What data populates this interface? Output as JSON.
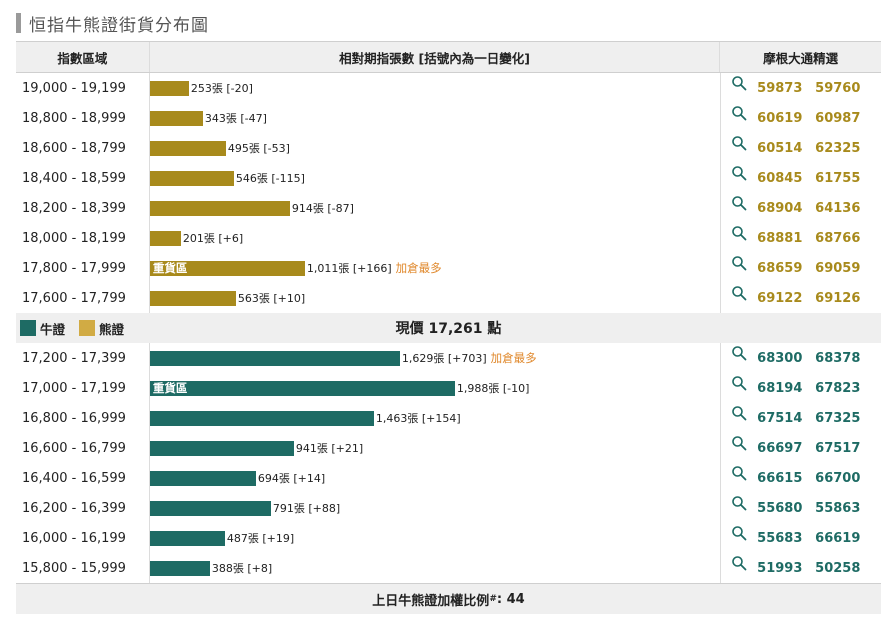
{
  "title": "恒指牛熊證街貨分布圖",
  "header": {
    "col_range": "指數區域",
    "col_count": "相對期指張數 [括號內為一日變化]",
    "col_picks": "摩根大通精選"
  },
  "legend": {
    "bull": "牛證",
    "bear": "熊證"
  },
  "price_label": "現價",
  "price_value": "17,261",
  "price_unit": "點",
  "footer": {
    "text": "上日牛熊證加權比例",
    "sup": "#",
    "value": ": 44"
  },
  "colors": {
    "bear": "#a88a1c",
    "bull": "#1e6b64",
    "note": "#e0892d"
  },
  "chart_data": {
    "type": "bar",
    "orientation": "horizontal",
    "value_unit": "張",
    "series": [
      {
        "name": "熊證",
        "rows": [
          {
            "range": "19,000 - 19,199",
            "value": 253,
            "value_text": "253張",
            "change_text": "[-20]",
            "inner_label": "",
            "note": "",
            "picks": [
              "59873",
              "59760"
            ]
          },
          {
            "range": "18,800 - 18,999",
            "value": 343,
            "value_text": "343張",
            "change_text": "[-47]",
            "inner_label": "",
            "note": "",
            "picks": [
              "60619",
              "60987"
            ]
          },
          {
            "range": "18,600 - 18,799",
            "value": 495,
            "value_text": "495張",
            "change_text": "[-53]",
            "inner_label": "",
            "note": "",
            "picks": [
              "60514",
              "62325"
            ]
          },
          {
            "range": "18,400 - 18,599",
            "value": 546,
            "value_text": "546張",
            "change_text": "[-115]",
            "inner_label": "",
            "note": "",
            "picks": [
              "60845",
              "61755"
            ]
          },
          {
            "range": "18,200 - 18,399",
            "value": 914,
            "value_text": "914張",
            "change_text": "[-87]",
            "inner_label": "",
            "note": "",
            "picks": [
              "68904",
              "64136"
            ]
          },
          {
            "range": "18,000 - 18,199",
            "value": 201,
            "value_text": "201張",
            "change_text": "[+6]",
            "inner_label": "",
            "note": "",
            "picks": [
              "68881",
              "68766"
            ]
          },
          {
            "range": "17,800 - 17,999",
            "value": 1011,
            "value_text": "1,011張",
            "change_text": "[+166]",
            "inner_label": "重貨區",
            "note": "加倉最多",
            "picks": [
              "68659",
              "69059"
            ]
          },
          {
            "range": "17,600 - 17,799",
            "value": 563,
            "value_text": "563張",
            "change_text": "[+10]",
            "inner_label": "",
            "note": "",
            "picks": [
              "69122",
              "69126"
            ]
          }
        ]
      },
      {
        "name": "牛證",
        "rows": [
          {
            "range": "17,200 - 17,399",
            "value": 1629,
            "value_text": "1,629張",
            "change_text": "[+703]",
            "inner_label": "",
            "note": "加倉最多",
            "picks": [
              "68300",
              "68378"
            ]
          },
          {
            "range": "17,000 - 17,199",
            "value": 1988,
            "value_text": "1,988張",
            "change_text": "[-10]",
            "inner_label": "重貨區",
            "note": "",
            "picks": [
              "68194",
              "67823"
            ]
          },
          {
            "range": "16,800 - 16,999",
            "value": 1463,
            "value_text": "1,463張",
            "change_text": "[+154]",
            "inner_label": "",
            "note": "",
            "picks": [
              "67514",
              "67325"
            ]
          },
          {
            "range": "16,600 - 16,799",
            "value": 941,
            "value_text": "941張",
            "change_text": "[+21]",
            "inner_label": "",
            "note": "",
            "picks": [
              "66697",
              "67517"
            ]
          },
          {
            "range": "16,400 - 16,599",
            "value": 694,
            "value_text": "694張",
            "change_text": "[+14]",
            "inner_label": "",
            "note": "",
            "picks": [
              "66615",
              "66700"
            ]
          },
          {
            "range": "16,200 - 16,399",
            "value": 791,
            "value_text": "791張",
            "change_text": "[+88]",
            "inner_label": "",
            "note": "",
            "picks": [
              "55680",
              "55863"
            ]
          },
          {
            "range": "16,000 - 16,199",
            "value": 487,
            "value_text": "487張",
            "change_text": "[+19]",
            "inner_label": "",
            "note": "",
            "picks": [
              "55683",
              "66619"
            ]
          },
          {
            "range": "15,800 - 15,999",
            "value": 388,
            "value_text": "388張",
            "change_text": "[+8]",
            "inner_label": "",
            "note": "",
            "picks": [
              "51993",
              "50258"
            ]
          }
        ]
      }
    ]
  }
}
